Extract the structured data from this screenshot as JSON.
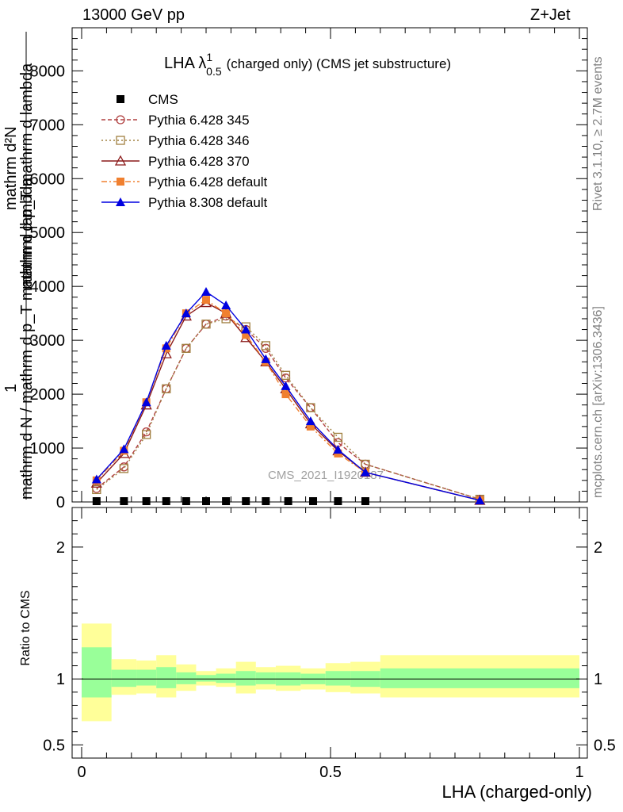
{
  "header": {
    "energy": "13000 GeV pp",
    "process": "Z+Jet"
  },
  "side": {
    "rivet": "Rivet 3.1.10, ≥ 2.7M events",
    "mcplots": "mcplots.cern.ch [arXiv:1306.3436]"
  },
  "chart_data": {
    "type": "line",
    "title_main": "LHA λ",
    "title_sup": "1",
    "title_sub": "0.5",
    "title_rest": "(charged only) (CMS jet substructure)",
    "watermark": "CMS_2021_I1920187",
    "xlabel": "LHA (charged-only)",
    "ylabel_top_num": "1",
    "ylabel_top_den": "mathrm d N / mathrm d p_T mathrm d lambda",
    "ylabel_top_num2": "mathrm d²N",
    "ylabel_top_den2": "mathrm d p_T mathrm d lambda",
    "ylabel_ratio": "Ratio to CMS",
    "xlim": [
      0,
      1
    ],
    "ylim_top": [
      0,
      8800
    ],
    "ylim_ratio": [
      0.4,
      2.3
    ],
    "xticks": [
      "0",
      "0.5",
      "1"
    ],
    "yticks_top": [
      "0",
      "1000",
      "2000",
      "3000",
      "4000",
      "5000",
      "6000",
      "7000",
      "8000"
    ],
    "yticks_ratio": [
      "0.5",
      "1",
      "2"
    ],
    "x": [
      0.03,
      0.085,
      0.13,
      0.17,
      0.21,
      0.25,
      0.29,
      0.33,
      0.37,
      0.41,
      0.46,
      0.515,
      0.57,
      0.8
    ],
    "series": [
      {
        "name": "CMS",
        "marker": "square-filled",
        "color": "#000000",
        "dash": "none",
        "values": [
          0,
          0,
          0,
          0,
          0,
          0,
          0,
          0,
          0,
          0,
          0,
          0,
          0,
          null
        ]
      },
      {
        "name": "Pythia 6.428 345",
        "marker": "circle-open",
        "color": "#b04040",
        "dash": "5,3",
        "values": [
          250,
          650,
          1300,
          2100,
          2850,
          3300,
          3450,
          3200,
          2850,
          2300,
          1750,
          1100,
          700,
          50
        ]
      },
      {
        "name": "Pythia 6.428 346",
        "marker": "square-open",
        "color": "#a08040",
        "dash": "2,3",
        "values": [
          230,
          620,
          1250,
          2100,
          2850,
          3300,
          3400,
          3250,
          2900,
          2350,
          1750,
          1200,
          700,
          50
        ]
      },
      {
        "name": "Pythia 6.428 370",
        "marker": "triangle-open",
        "color": "#8b1a1a",
        "dash": "none",
        "values": [
          350,
          900,
          1800,
          2750,
          3450,
          3700,
          3500,
          3050,
          2600,
          2100,
          1450,
          950,
          550,
          30
        ]
      },
      {
        "name": "Pythia 6.428 default",
        "marker": "square-filled",
        "color": "#f08030",
        "dash": "7,3,2,3",
        "values": [
          400,
          950,
          1850,
          2850,
          3500,
          3750,
          3500,
          3100,
          2600,
          2000,
          1400,
          900,
          550,
          30
        ]
      },
      {
        "name": "Pythia 8.308 default",
        "marker": "triangle-filled",
        "color": "#0000e0",
        "dash": "none",
        "values": [
          420,
          980,
          1850,
          2900,
          3500,
          3900,
          3650,
          3200,
          2650,
          2150,
          1500,
          970,
          550,
          30
        ]
      }
    ],
    "cms_points": {
      "x": [
        0.03,
        0.085,
        0.13,
        0.17,
        0.21,
        0.25,
        0.29,
        0.33,
        0.37,
        0.415,
        0.465,
        0.515,
        0.57
      ],
      "y": [
        0,
        0,
        0,
        0,
        0,
        0,
        0,
        0,
        0,
        0,
        0,
        0,
        0
      ]
    },
    "ratio_bands": [
      {
        "x0": 0.0,
        "x1": 0.06,
        "green": [
          0.86,
          1.24
        ],
        "yellow": [
          0.68,
          1.42
        ]
      },
      {
        "x0": 0.06,
        "x1": 0.11,
        "green": [
          0.94,
          1.07
        ],
        "yellow": [
          0.88,
          1.15
        ]
      },
      {
        "x0": 0.11,
        "x1": 0.15,
        "green": [
          0.95,
          1.07
        ],
        "yellow": [
          0.89,
          1.14
        ]
      },
      {
        "x0": 0.15,
        "x1": 0.19,
        "green": [
          0.93,
          1.09
        ],
        "yellow": [
          0.86,
          1.18
        ]
      },
      {
        "x0": 0.19,
        "x1": 0.23,
        "green": [
          0.96,
          1.05
        ],
        "yellow": [
          0.91,
          1.11
        ]
      },
      {
        "x0": 0.23,
        "x1": 0.27,
        "green": [
          0.98,
          1.03
        ],
        "yellow": [
          0.95,
          1.06
        ]
      },
      {
        "x0": 0.27,
        "x1": 0.31,
        "green": [
          0.97,
          1.04
        ],
        "yellow": [
          0.94,
          1.08
        ]
      },
      {
        "x0": 0.31,
        "x1": 0.35,
        "green": [
          0.95,
          1.06
        ],
        "yellow": [
          0.89,
          1.13
        ]
      },
      {
        "x0": 0.35,
        "x1": 0.39,
        "green": [
          0.96,
          1.05
        ],
        "yellow": [
          0.92,
          1.09
        ]
      },
      {
        "x0": 0.39,
        "x1": 0.44,
        "green": [
          0.95,
          1.05
        ],
        "yellow": [
          0.91,
          1.1
        ]
      },
      {
        "x0": 0.44,
        "x1": 0.49,
        "green": [
          0.96,
          1.04
        ],
        "yellow": [
          0.92,
          1.08
        ]
      },
      {
        "x0": 0.49,
        "x1": 0.54,
        "green": [
          0.95,
          1.06
        ],
        "yellow": [
          0.9,
          1.12
        ]
      },
      {
        "x0": 0.54,
        "x1": 0.6,
        "green": [
          0.94,
          1.06
        ],
        "yellow": [
          0.89,
          1.13
        ]
      },
      {
        "x0": 0.6,
        "x1": 1.0,
        "green": [
          0.93,
          1.08
        ],
        "yellow": [
          0.86,
          1.18
        ]
      }
    ]
  }
}
